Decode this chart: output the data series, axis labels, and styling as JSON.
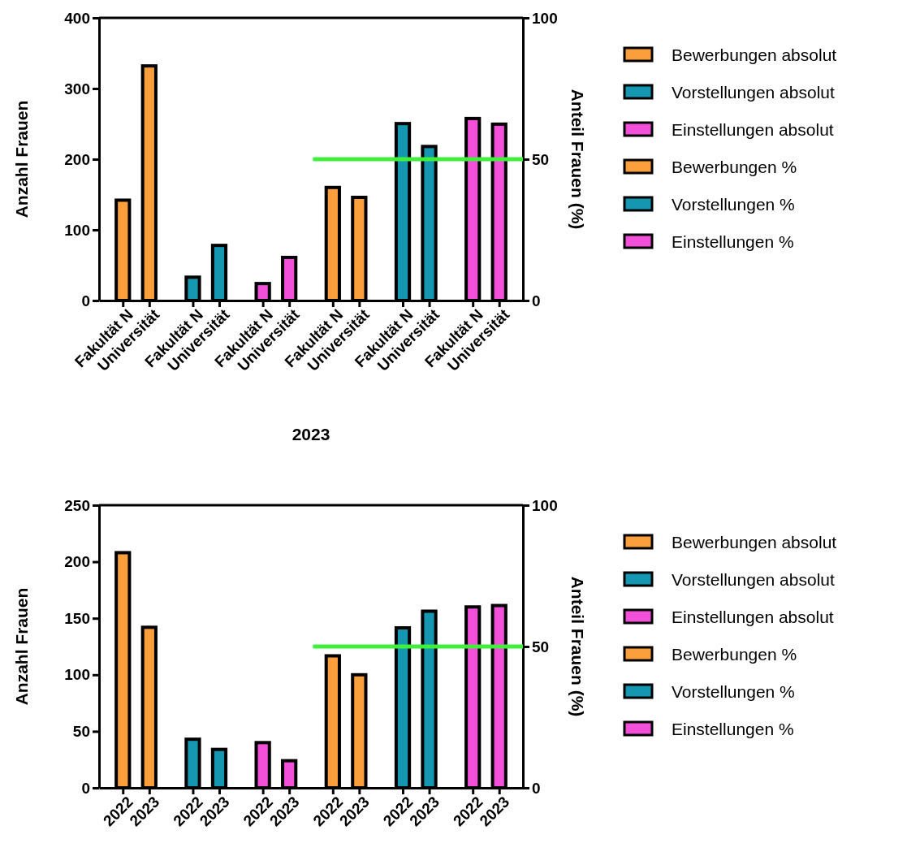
{
  "chart_data": [
    {
      "type": "bar",
      "xlabel": "2023",
      "ylabel": "Anzahl Frauen",
      "y2label": "Anteil Frauen (%)",
      "categories": [
        "Fakultät N",
        "Universität",
        "Fakultät N",
        "Universität",
        "Fakultät N",
        "Universität",
        "Fakultät N",
        "Universität",
        "Fakultät N",
        "Universität",
        "Fakultät N",
        "Universität"
      ],
      "series": [
        {
          "name": "Bewerbungen absolut",
          "color": "#fa9f3c",
          "values": [
            142,
            332,
            null,
            null,
            null,
            null,
            null,
            null,
            null,
            null,
            null,
            null
          ]
        },
        {
          "name": "Vorstellungen absolut",
          "color": "#1597b2",
          "values": [
            null,
            null,
            33,
            78,
            null,
            null,
            null,
            null,
            null,
            null,
            null,
            null
          ]
        },
        {
          "name": "Einstellungen absolut",
          "color": "#f250d8",
          "values": [
            null,
            null,
            null,
            null,
            24,
            61,
            null,
            null,
            null,
            null,
            null,
            null
          ]
        },
        {
          "name": "Bewerbungen %",
          "color": "#fa9f3c",
          "axis": "y2",
          "values": [
            null,
            null,
            null,
            null,
            null,
            null,
            40,
            36.5,
            null,
            null,
            null,
            null
          ]
        },
        {
          "name": "Vorstellungen %",
          "color": "#1597b2",
          "axis": "y2",
          "values": [
            null,
            null,
            null,
            null,
            null,
            null,
            null,
            null,
            62.6,
            54.5,
            null,
            null
          ]
        },
        {
          "name": "Einstellungen %",
          "color": "#f250d8",
          "axis": "y2",
          "values": [
            null,
            null,
            null,
            null,
            null,
            null,
            null,
            null,
            null,
            null,
            64.4,
            62.4
          ]
        }
      ],
      "ylim": [
        0,
        400
      ],
      "yticks": [
        0,
        100,
        200,
        300,
        400
      ],
      "y2lim": [
        0,
        100
      ],
      "y2ticks": [
        0,
        50,
        100
      ],
      "ref_lines": [
        {
          "axis": "y2",
          "value": 50,
          "color": "#3ef03a"
        }
      ],
      "legend": "right",
      "grid": false
    },
    {
      "type": "bar",
      "ylabel": "Anzahl Frauen",
      "y2label": "Anteil Frauen (%)",
      "categories": [
        "2022",
        "2023",
        "2022",
        "2023",
        "2022",
        "2023",
        "2022",
        "2023",
        "2022",
        "2023",
        "2022",
        "2023"
      ],
      "series": [
        {
          "name": "Bewerbungen absolut",
          "color": "#fa9f3c",
          "values": [
            208,
            142,
            null,
            null,
            null,
            null,
            null,
            null,
            null,
            null,
            null,
            null
          ]
        },
        {
          "name": "Vorstellungen absolut",
          "color": "#1597b2",
          "values": [
            null,
            null,
            43,
            34,
            null,
            null,
            null,
            null,
            null,
            null,
            null,
            null
          ]
        },
        {
          "name": "Einstellungen absolut",
          "color": "#f250d8",
          "values": [
            null,
            null,
            null,
            null,
            40,
            24,
            null,
            null,
            null,
            null,
            null,
            null
          ]
        },
        {
          "name": "Bewerbungen %",
          "color": "#fa9f3c",
          "axis": "y2",
          "values": [
            null,
            null,
            null,
            null,
            null,
            null,
            46.7,
            40,
            null,
            null,
            null,
            null
          ]
        },
        {
          "name": "Vorstellungen %",
          "color": "#1597b2",
          "axis": "y2",
          "values": [
            null,
            null,
            null,
            null,
            null,
            null,
            null,
            null,
            56.6,
            62.5,
            null,
            null
          ]
        },
        {
          "name": "Einstellungen %",
          "color": "#f250d8",
          "axis": "y2",
          "values": [
            null,
            null,
            null,
            null,
            null,
            null,
            null,
            null,
            null,
            null,
            64,
            64.5
          ]
        }
      ],
      "ylim": [
        0,
        250
      ],
      "yticks": [
        0,
        50,
        100,
        150,
        200,
        250
      ],
      "y2lim": [
        0,
        100
      ],
      "y2ticks": [
        0,
        50,
        100
      ],
      "ref_lines": [
        {
          "axis": "y2",
          "value": 50,
          "color": "#3ef03a"
        }
      ],
      "legend": "right",
      "grid": false
    }
  ]
}
